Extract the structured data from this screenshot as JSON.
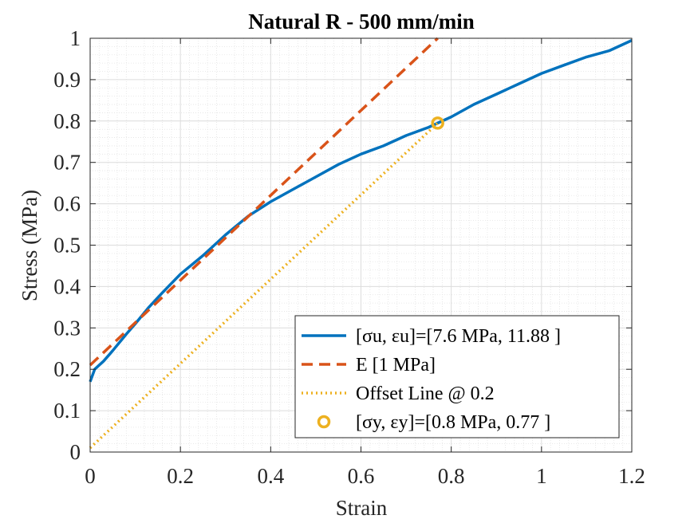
{
  "chart_data": {
    "type": "line",
    "title": "Natural R - 500 mm/min",
    "xlabel": "Strain",
    "ylabel": "Stress (MPa)",
    "xlim": [
      0,
      1.2
    ],
    "ylim": [
      0,
      1
    ],
    "grid": "on (major and minor)",
    "legend_location": "bottom-right",
    "x_ticks": [
      0,
      0.2,
      0.4,
      0.6,
      0.8,
      1,
      1.2
    ],
    "x_tick_labels": [
      "0",
      "0.2",
      "0.4",
      "0.6",
      "0.8",
      "1",
      "1.2"
    ],
    "y_ticks": [
      0,
      0.1,
      0.2,
      0.3,
      0.4,
      0.5,
      0.6,
      0.7,
      0.8,
      0.9,
      1
    ],
    "y_tick_labels": [
      "0",
      "0.1",
      "0.2",
      "0.3",
      "0.4",
      "0.5",
      "0.6",
      "0.7",
      "0.8",
      "0.9",
      "1"
    ],
    "series": [
      {
        "legend_label": "[σu, εu]=[7.6 MPa, 11.88 ]",
        "color": "#0072BD",
        "style": "solid",
        "x": [
          0,
          0.01,
          0.03,
          0.05,
          0.08,
          0.1,
          0.13,
          0.16,
          0.2,
          0.25,
          0.3,
          0.35,
          0.4,
          0.45,
          0.5,
          0.55,
          0.6,
          0.65,
          0.7,
          0.75,
          0.77,
          0.8,
          0.85,
          0.9,
          0.95,
          1.0,
          1.05,
          1.1,
          1.15,
          1.2
        ],
        "y": [
          0.17,
          0.2,
          0.22,
          0.245,
          0.285,
          0.31,
          0.35,
          0.385,
          0.43,
          0.475,
          0.525,
          0.57,
          0.605,
          0.635,
          0.665,
          0.695,
          0.72,
          0.74,
          0.765,
          0.785,
          0.795,
          0.81,
          0.84,
          0.865,
          0.89,
          0.915,
          0.935,
          0.955,
          0.97,
          0.995
        ]
      },
      {
        "legend_label": "E [1 MPa]",
        "color": "#D95319",
        "style": "dashed",
        "x": [
          0,
          0.77
        ],
        "y": [
          0.21,
          1.0
        ]
      },
      {
        "legend_label": "Offset Line @ 0.2",
        "color": "#EDB120",
        "style": "dotted",
        "x": [
          0,
          0.77
        ],
        "y": [
          0.01,
          0.795
        ]
      },
      {
        "legend_label": "[σy, εy]=[0.8 MPa, 0.77 ]",
        "color": "#EDB120",
        "style": "marker",
        "x": [
          0.77
        ],
        "y": [
          0.795
        ]
      }
    ]
  }
}
